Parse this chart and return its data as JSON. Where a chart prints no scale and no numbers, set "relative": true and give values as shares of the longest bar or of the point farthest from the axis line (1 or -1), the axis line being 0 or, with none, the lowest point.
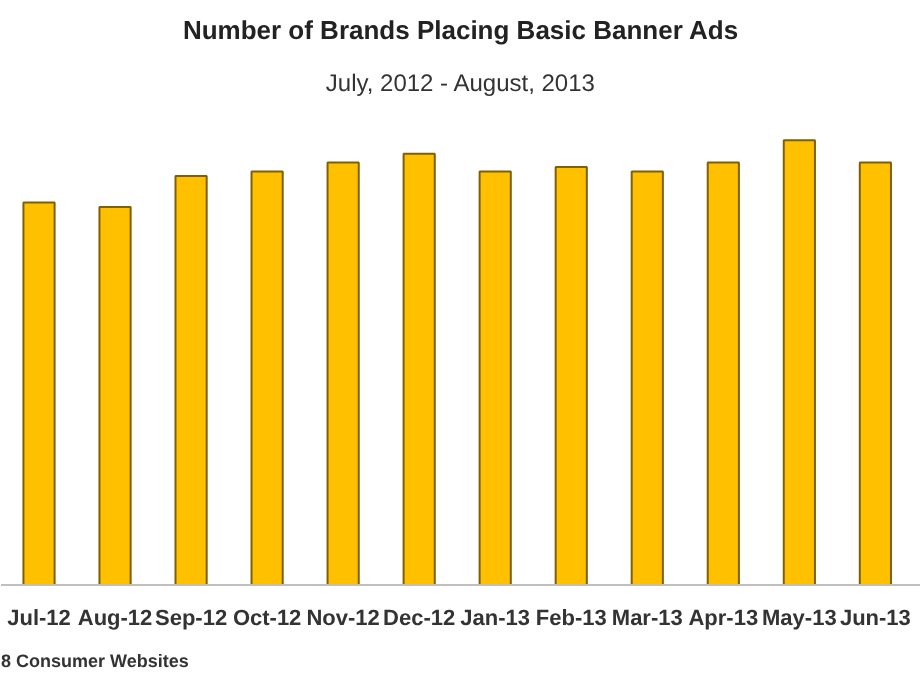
{
  "chart_data": {
    "type": "bar",
    "title": "Number of Brands Placing Basic Banner Ads",
    "subtitle": "July, 2012 - August, 2013",
    "categories": [
      "Jul-12",
      "Aug-12",
      "Sep-12",
      "Oct-12",
      "Nov-12",
      "Dec-12",
      "Jan-13",
      "Feb-13",
      "Mar-13",
      "Apr-13",
      "May-13",
      "Jun-13"
    ],
    "values": [
      0.86,
      0.85,
      0.92,
      0.93,
      0.95,
      0.97,
      0.93,
      0.94,
      0.93,
      0.95,
      1,
      0.95
    ],
    "color": "#ffc000",
    "relative": true,
    "grid": false,
    "annotations": [
      "8 Consumer Websites"
    ]
  }
}
